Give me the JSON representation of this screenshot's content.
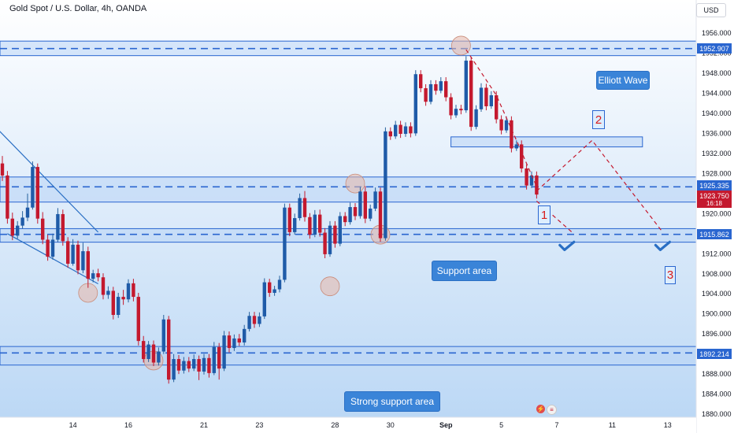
{
  "header": {
    "symbol": "Gold Spot / U.S. Dollar, 4h, OANDA",
    "currency_button": "USD"
  },
  "colors": {
    "up": "#26619c",
    "up_fill": "#1f5ba8",
    "down": "#c4192e",
    "zone_fill": "#b8d4f5",
    "zone_border": "#2a66d0",
    "gradient_top": "#ffffff",
    "gradient_bottom": "#bcd8f5",
    "path": "#c4192e",
    "check": "#2a6fc4",
    "circle": "#e8b7a8"
  },
  "annotations": {
    "elliott_wave": "Elliott Wave",
    "support_area": "Support area",
    "strong_support_area": "Strong support area",
    "wave_1": "1",
    "wave_2": "2",
    "wave_3": "3"
  },
  "price_tags": {
    "level_1952": "1952.907",
    "level_1925": "1925.335",
    "current_price": "1923.750",
    "countdown": "16:18",
    "level_1915": "1915.862",
    "level_1892": "1892.214"
  },
  "chart_data": {
    "type": "candlestick",
    "title": "Gold Spot / U.S. Dollar, 4h, OANDA",
    "y_axis": {
      "min": 1880,
      "max": 1958,
      "ticks_from": 1880,
      "ticks_to": 1956,
      "tick_step": 4,
      "tick_labels": [
        "1880.000",
        "1884.000",
        "1888.000",
        "1892.000",
        "1896.000",
        "1900.000",
        "1904.000",
        "1908.000",
        "1912.000",
        "1916.000",
        "1920.000",
        "1924.000",
        "1928.000",
        "1932.000",
        "1936.000",
        "1940.000",
        "1944.000",
        "1948.000",
        "1952.000",
        "1956.000"
      ]
    },
    "x_axis": {
      "tick_labels": [
        "14",
        "16",
        "21",
        "23",
        "28",
        "30",
        "Sep",
        "5",
        "7",
        "11",
        "13"
      ],
      "tick_bars": [
        14,
        25,
        40,
        51,
        66,
        77,
        88,
        99,
        110,
        121,
        132
      ]
    },
    "horizontal_levels": [
      1952.907,
      1925.335,
      1915.862,
      1892.214
    ],
    "zones": [
      {
        "name": "top resistance",
        "low": 1951.5,
        "high": 1954.4
      },
      {
        "name": "upper box",
        "low": 1933.3,
        "high": 1935.3,
        "from_bar": 89,
        "to_bar": 127
      },
      {
        "name": "band 1925",
        "low": 1922.3,
        "high": 1927.3
      },
      {
        "name": "support area",
        "low": 1914.3,
        "high": 1917.0
      },
      {
        "name": "strong support area",
        "low": 1889.8,
        "high": 1893.5
      }
    ],
    "projection": [
      {
        "bar": 106,
        "price": 1924.5
      },
      {
        "bar": 117,
        "price": 1934.6
      },
      {
        "bar": 131,
        "price": 1916.3
      }
    ],
    "projection_branch": [
      {
        "bar": 106,
        "price": 1922.5
      },
      {
        "bar": 113,
        "price": 1916.3
      }
    ],
    "decline_path": [
      {
        "bar": 92,
        "price": 1952.7
      },
      {
        "bar": 98,
        "price": 1943.6
      },
      {
        "bar": 102,
        "price": 1934.6
      },
      {
        "bar": 106,
        "price": 1925.4
      }
    ],
    "channel_lines": [
      [
        {
          "bar": -1,
          "price": 1936.9
        },
        {
          "bar": 19,
          "price": 1916.3
        }
      ],
      [
        {
          "bar": 1,
          "price": 1916.0
        },
        {
          "bar": 19,
          "price": 1906.0
        }
      ]
    ],
    "highlight_circles": [
      {
        "bar": 17,
        "price": 1904.2
      },
      {
        "bar": 30,
        "price": 1890.7
      },
      {
        "bar": 65,
        "price": 1905.5
      },
      {
        "bar": 70,
        "price": 1926.0
      },
      {
        "bar": 75,
        "price": 1915.8
      },
      {
        "bar": 91,
        "price": 1953.5
      }
    ],
    "checkmarks": [
      {
        "bar": 112,
        "price": 1913.4
      },
      {
        "bar": 131,
        "price": 1913.4
      }
    ],
    "candles": [
      [
        0,
        1930.0,
        1927.6,
        1931.5,
        1926.5
      ],
      [
        1,
        1927.6,
        1919.0,
        1928.5,
        1918.0
      ],
      [
        2,
        1919.0,
        1915.6,
        1920.2,
        1914.7
      ],
      [
        3,
        1915.6,
        1917.6,
        1918.5,
        1915.0
      ],
      [
        4,
        1917.6,
        1919.2,
        1920.5,
        1917.0
      ],
      [
        5,
        1919.2,
        1921.2,
        1924.0,
        1918.5
      ],
      [
        6,
        1921.2,
        1929.3,
        1930.4,
        1920.8
      ],
      [
        7,
        1929.3,
        1919.0,
        1930.0,
        1918.0
      ],
      [
        8,
        1919.0,
        1914.8,
        1920.3,
        1913.9
      ],
      [
        9,
        1914.8,
        1911.4,
        1915.8,
        1910.6
      ],
      [
        10,
        1911.4,
        1914.8,
        1916.0,
        1910.8
      ],
      [
        11,
        1914.8,
        1919.9,
        1921.1,
        1914.3
      ],
      [
        12,
        1919.9,
        1914.5,
        1920.8,
        1913.6
      ],
      [
        13,
        1914.5,
        1910.0,
        1915.3,
        1909.2
      ],
      [
        14,
        1910.0,
        1913.8,
        1914.9,
        1909.6
      ],
      [
        15,
        1913.8,
        1908.7,
        1914.6,
        1907.9
      ],
      [
        16,
        1908.7,
        1912.5,
        1914.2,
        1908.1
      ],
      [
        17,
        1912.5,
        1907.0,
        1913.4,
        1905.2
      ],
      [
        18,
        1907.0,
        1908.1,
        1908.8,
        1906.3
      ],
      [
        19,
        1908.1,
        1907.3,
        1909.0,
        1906.5
      ],
      [
        20,
        1907.3,
        1903.8,
        1908.1,
        1902.9
      ],
      [
        21,
        1903.8,
        1904.6,
        1905.5,
        1903.0
      ],
      [
        22,
        1904.6,
        1899.8,
        1905.4,
        1898.9
      ],
      [
        23,
        1899.8,
        1903.4,
        1904.2,
        1899.2
      ],
      [
        24,
        1903.4,
        1902.9,
        1904.8,
        1901.8
      ],
      [
        25,
        1902.9,
        1906.1,
        1906.9,
        1902.3
      ],
      [
        26,
        1906.1,
        1903.4,
        1907.0,
        1902.5
      ],
      [
        27,
        1903.4,
        1894.6,
        1904.2,
        1893.7
      ],
      [
        28,
        1894.6,
        1891.0,
        1895.6,
        1890.3
      ],
      [
        29,
        1891.0,
        1893.9,
        1894.6,
        1890.4
      ],
      [
        30,
        1893.9,
        1890.3,
        1894.7,
        1889.6
      ],
      [
        31,
        1890.3,
        1892.5,
        1893.3,
        1889.7
      ],
      [
        32,
        1892.5,
        1898.9,
        1899.8,
        1892.0
      ],
      [
        33,
        1898.9,
        1886.9,
        1899.6,
        1886.1
      ],
      [
        34,
        1886.9,
        1891.0,
        1892.0,
        1886.4
      ],
      [
        35,
        1891.0,
        1888.7,
        1891.8,
        1888.0
      ],
      [
        36,
        1888.7,
        1890.6,
        1891.4,
        1888.1
      ],
      [
        37,
        1890.6,
        1889.1,
        1891.4,
        1888.4
      ],
      [
        38,
        1889.1,
        1891.0,
        1891.9,
        1888.6
      ],
      [
        39,
        1891.0,
        1888.5,
        1891.7,
        1886.8
      ],
      [
        40,
        1888.5,
        1891.2,
        1892.0,
        1887.9
      ],
      [
        41,
        1891.2,
        1888.2,
        1892.0,
        1887.3
      ],
      [
        42,
        1888.2,
        1893.4,
        1894.4,
        1887.8
      ],
      [
        43,
        1893.4,
        1889.1,
        1894.2,
        1886.9
      ],
      [
        44,
        1889.1,
        1895.7,
        1896.6,
        1888.6
      ],
      [
        45,
        1895.7,
        1893.2,
        1896.5,
        1892.3
      ],
      [
        46,
        1893.2,
        1895.1,
        1895.9,
        1892.6
      ],
      [
        47,
        1895.1,
        1894.3,
        1896.0,
        1893.6
      ],
      [
        48,
        1894.3,
        1897.0,
        1897.8,
        1893.7
      ],
      [
        49,
        1897.0,
        1899.6,
        1900.4,
        1896.5
      ],
      [
        50,
        1899.6,
        1898.0,
        1900.4,
        1897.2
      ],
      [
        51,
        1898.0,
        1899.5,
        1900.3,
        1897.4
      ],
      [
        52,
        1899.5,
        1906.3,
        1907.1,
        1899.0
      ],
      [
        53,
        1906.3,
        1904.2,
        1907.0,
        1903.4
      ],
      [
        54,
        1904.2,
        1904.9,
        1905.6,
        1903.6
      ],
      [
        55,
        1904.9,
        1906.8,
        1907.6,
        1904.3
      ],
      [
        56,
        1906.8,
        1921.2,
        1922.0,
        1906.3
      ],
      [
        57,
        1921.2,
        1916.3,
        1922.0,
        1915.5
      ],
      [
        58,
        1916.3,
        1919.1,
        1920.0,
        1915.8
      ],
      [
        59,
        1919.1,
        1923.1,
        1924.0,
        1918.6
      ],
      [
        60,
        1923.1,
        1919.3,
        1924.5,
        1918.4
      ],
      [
        61,
        1919.3,
        1915.8,
        1920.1,
        1915.0
      ],
      [
        62,
        1915.8,
        1919.8,
        1920.7,
        1915.3
      ],
      [
        63,
        1919.8,
        1916.2,
        1920.8,
        1915.4
      ],
      [
        64,
        1916.2,
        1911.9,
        1917.1,
        1911.1
      ],
      [
        65,
        1911.9,
        1917.6,
        1918.5,
        1911.4
      ],
      [
        66,
        1917.6,
        1914.0,
        1918.5,
        1913.2
      ],
      [
        67,
        1914.0,
        1919.5,
        1920.3,
        1913.5
      ],
      [
        68,
        1919.5,
        1918.3,
        1920.3,
        1917.5
      ],
      [
        69,
        1918.3,
        1921.3,
        1922.2,
        1917.8
      ],
      [
        70,
        1921.3,
        1919.5,
        1922.1,
        1918.7
      ],
      [
        71,
        1919.5,
        1924.4,
        1925.3,
        1919.0
      ],
      [
        72,
        1924.4,
        1919.0,
        1925.5,
        1918.1
      ],
      [
        73,
        1919.0,
        1921.0,
        1921.8,
        1918.5
      ],
      [
        74,
        1921.0,
        1924.4,
        1925.2,
        1920.5
      ],
      [
        75,
        1924.4,
        1915.1,
        1925.2,
        1914.4
      ],
      [
        76,
        1915.1,
        1936.4,
        1937.2,
        1914.6
      ],
      [
        77,
        1936.4,
        1935.4,
        1937.2,
        1934.7
      ],
      [
        78,
        1935.4,
        1937.7,
        1938.5,
        1934.9
      ],
      [
        79,
        1937.7,
        1935.9,
        1938.5,
        1935.1
      ],
      [
        80,
        1935.9,
        1937.4,
        1938.2,
        1935.3
      ],
      [
        81,
        1937.4,
        1936.0,
        1938.2,
        1935.2
      ],
      [
        82,
        1936.0,
        1947.8,
        1948.6,
        1935.5
      ],
      [
        83,
        1947.8,
        1945.0,
        1948.6,
        1944.2
      ],
      [
        84,
        1945.0,
        1942.3,
        1945.8,
        1941.5
      ],
      [
        85,
        1942.3,
        1945.8,
        1946.6,
        1941.8
      ],
      [
        86,
        1945.8,
        1944.5,
        1946.6,
        1943.7
      ],
      [
        87,
        1944.5,
        1946.4,
        1947.2,
        1944.0
      ],
      [
        88,
        1946.4,
        1943.2,
        1947.2,
        1942.4
      ],
      [
        89,
        1943.2,
        1939.6,
        1944.0,
        1938.8
      ],
      [
        90,
        1939.6,
        1940.9,
        1941.7,
        1939.1
      ],
      [
        91,
        1940.9,
        1940.6,
        1941.7,
        1939.8
      ],
      [
        92,
        1940.6,
        1950.5,
        1951.4,
        1940.1
      ],
      [
        93,
        1950.5,
        1937.3,
        1951.3,
        1936.5
      ],
      [
        94,
        1937.3,
        1940.8,
        1941.6,
        1936.8
      ],
      [
        95,
        1940.8,
        1945.1,
        1946.0,
        1940.3
      ],
      [
        96,
        1945.1,
        1941.4,
        1945.9,
        1940.6
      ],
      [
        97,
        1941.4,
        1943.6,
        1944.4,
        1940.9
      ],
      [
        98,
        1943.6,
        1938.8,
        1944.4,
        1938.0
      ],
      [
        99,
        1938.8,
        1936.6,
        1939.6,
        1935.8
      ],
      [
        100,
        1936.6,
        1938.6,
        1939.4,
        1936.1
      ],
      [
        101,
        1938.6,
        1933.0,
        1939.4,
        1932.2
      ],
      [
        102,
        1933.0,
        1933.8,
        1934.6,
        1932.5
      ],
      [
        103,
        1933.8,
        1929.0,
        1934.6,
        1928.2
      ],
      [
        104,
        1929.0,
        1925.6,
        1929.8,
        1924.8
      ],
      [
        105,
        1925.6,
        1927.6,
        1928.4,
        1925.1
      ],
      [
        106,
        1927.6,
        1923.8,
        1928.4,
        1923.0
      ]
    ]
  }
}
